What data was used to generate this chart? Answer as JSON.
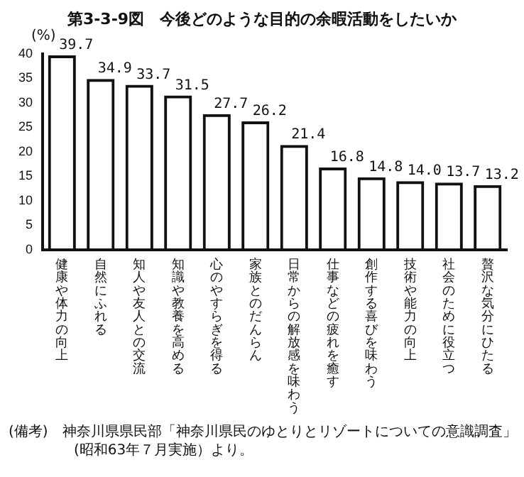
{
  "chart_data": {
    "type": "bar",
    "title": "第3-3-9図　今後どのような目的の余暇活動をしたいか",
    "ylabel": "(%)",
    "categories": [
      "健康や体力の向上",
      "自然にふれる",
      "知人や友人との交流",
      "知識や教養を高める",
      "心のやすらぎを得る",
      "家族とのだんらん",
      "日常からの解放感を味わう",
      "仕事などの疲れを癒す",
      "創作する喜びを味わう",
      "技術や能力の向上",
      "社会のために役立つ",
      "贅沢な気分にひたる"
    ],
    "values": [
      39.7,
      34.9,
      33.7,
      31.5,
      27.7,
      26.2,
      21.4,
      16.8,
      14.8,
      14.0,
      13.7,
      13.2
    ],
    "value_labels": [
      "39.7",
      "34.9",
      "33.7",
      "31.5",
      "27.7",
      "26.2",
      "21.4",
      "16.8",
      "14.8",
      "14.0",
      "13.7",
      "13.2"
    ],
    "color": "#111111",
    "ylim": [
      0,
      40
    ],
    "yticks": [
      0,
      5,
      10,
      15,
      20,
      25,
      30,
      35,
      40
    ],
    "grid": false,
    "annotations": [
      "(備考)　神奈川県県民部「神奈川県民のゆとりとリゾートについての意識調査」",
      "(昭和63年７月実施）より。"
    ]
  }
}
